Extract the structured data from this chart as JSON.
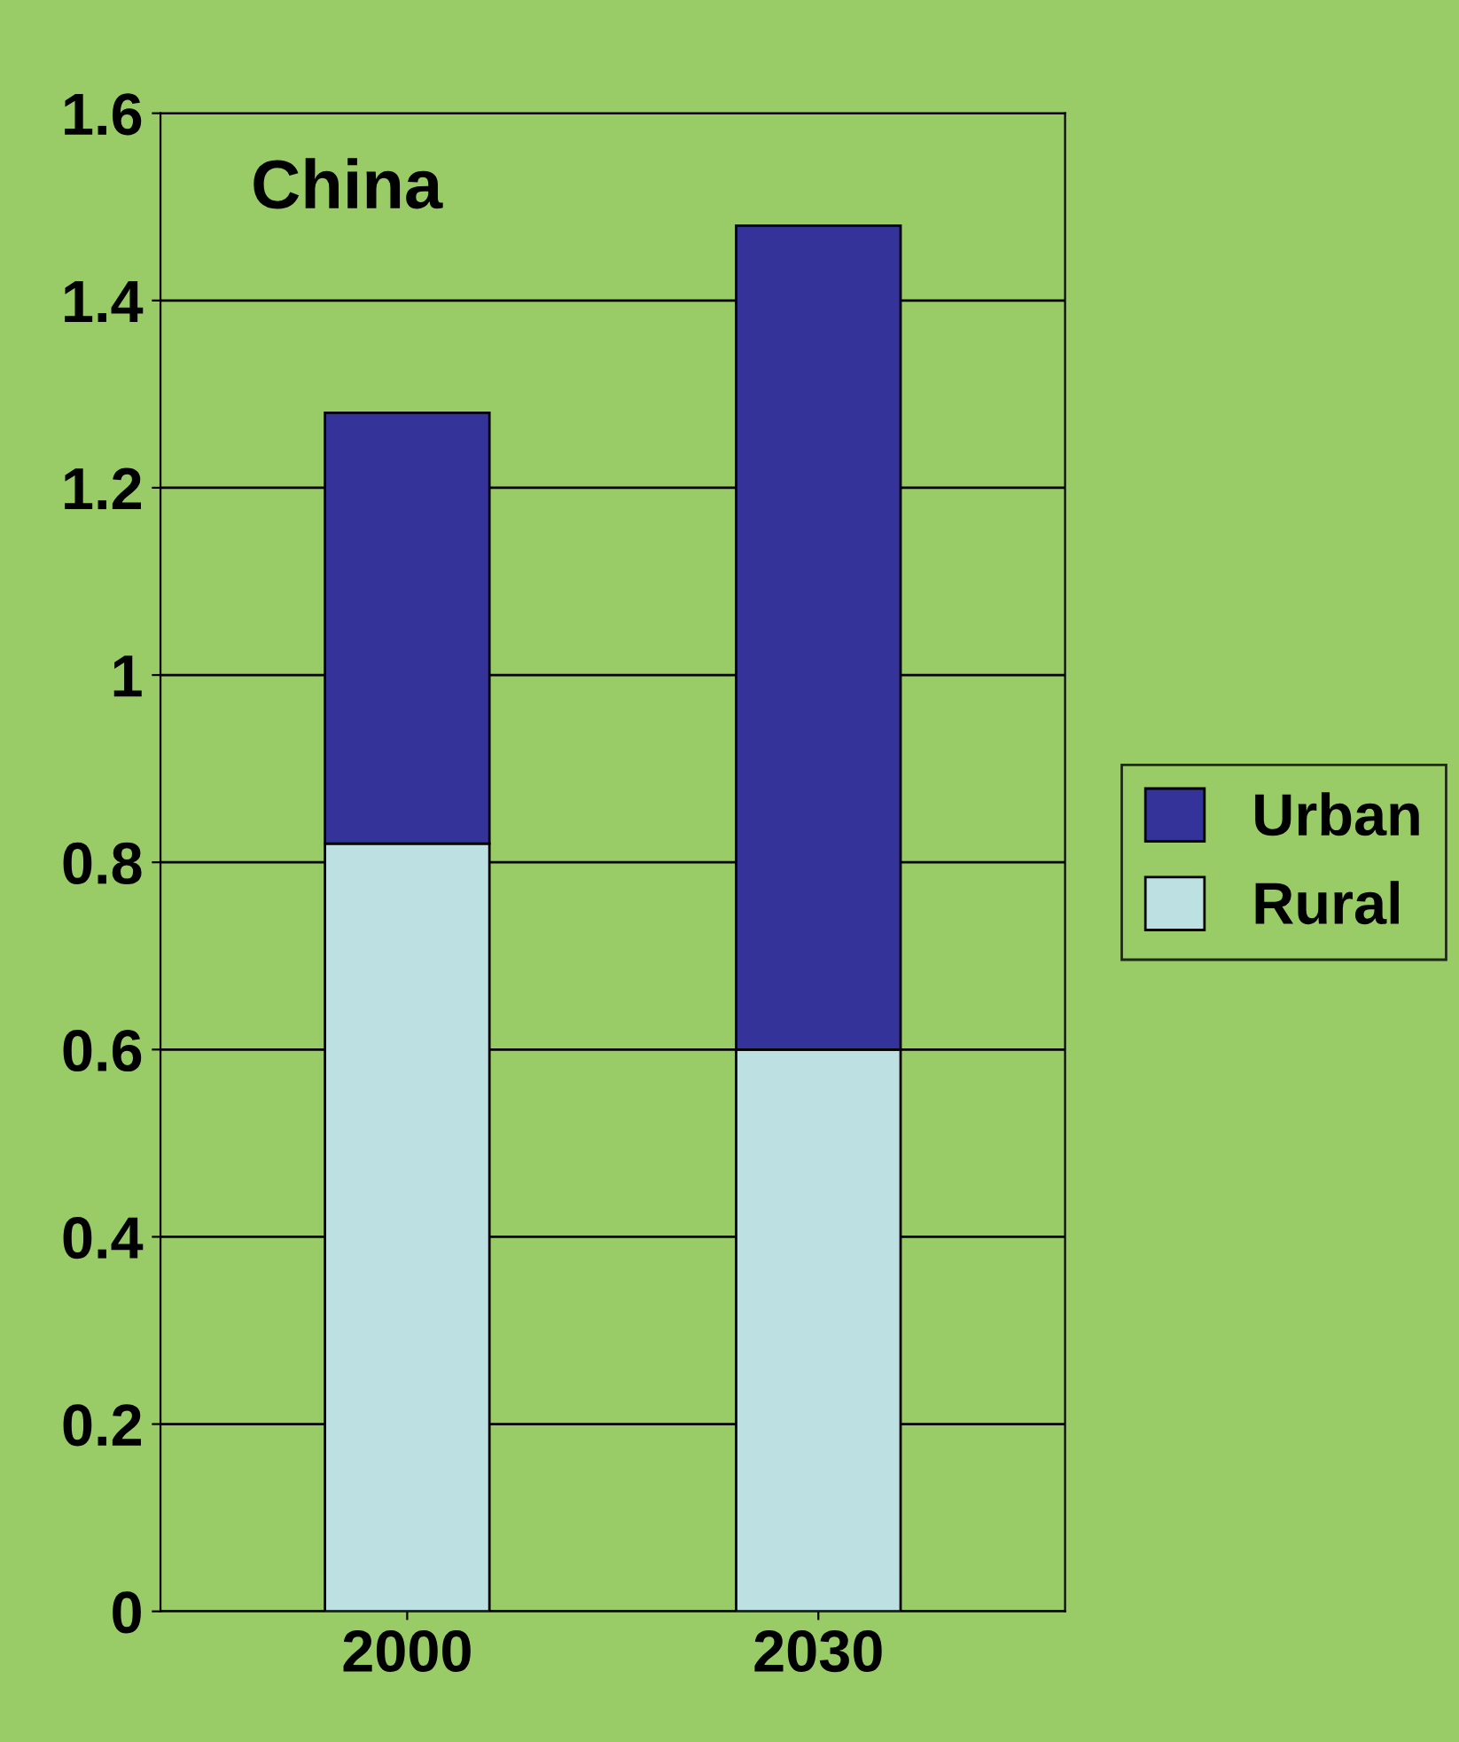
{
  "chart_data": {
    "type": "bar",
    "title": "China",
    "categories": [
      "2000",
      "2030"
    ],
    "stacked": true,
    "series": [
      {
        "name": "Rural",
        "color": "#bde0e3",
        "values": [
          0.82,
          0.6
        ]
      },
      {
        "name": "Urban",
        "color": "#333399",
        "values": [
          0.46,
          0.88
        ]
      }
    ],
    "ylim": [
      0,
      1.6
    ],
    "yticks": [
      0,
      0.2,
      0.4,
      0.6,
      0.8,
      1,
      1.2,
      1.4,
      1.6
    ],
    "grid": "y",
    "legend": "right"
  }
}
